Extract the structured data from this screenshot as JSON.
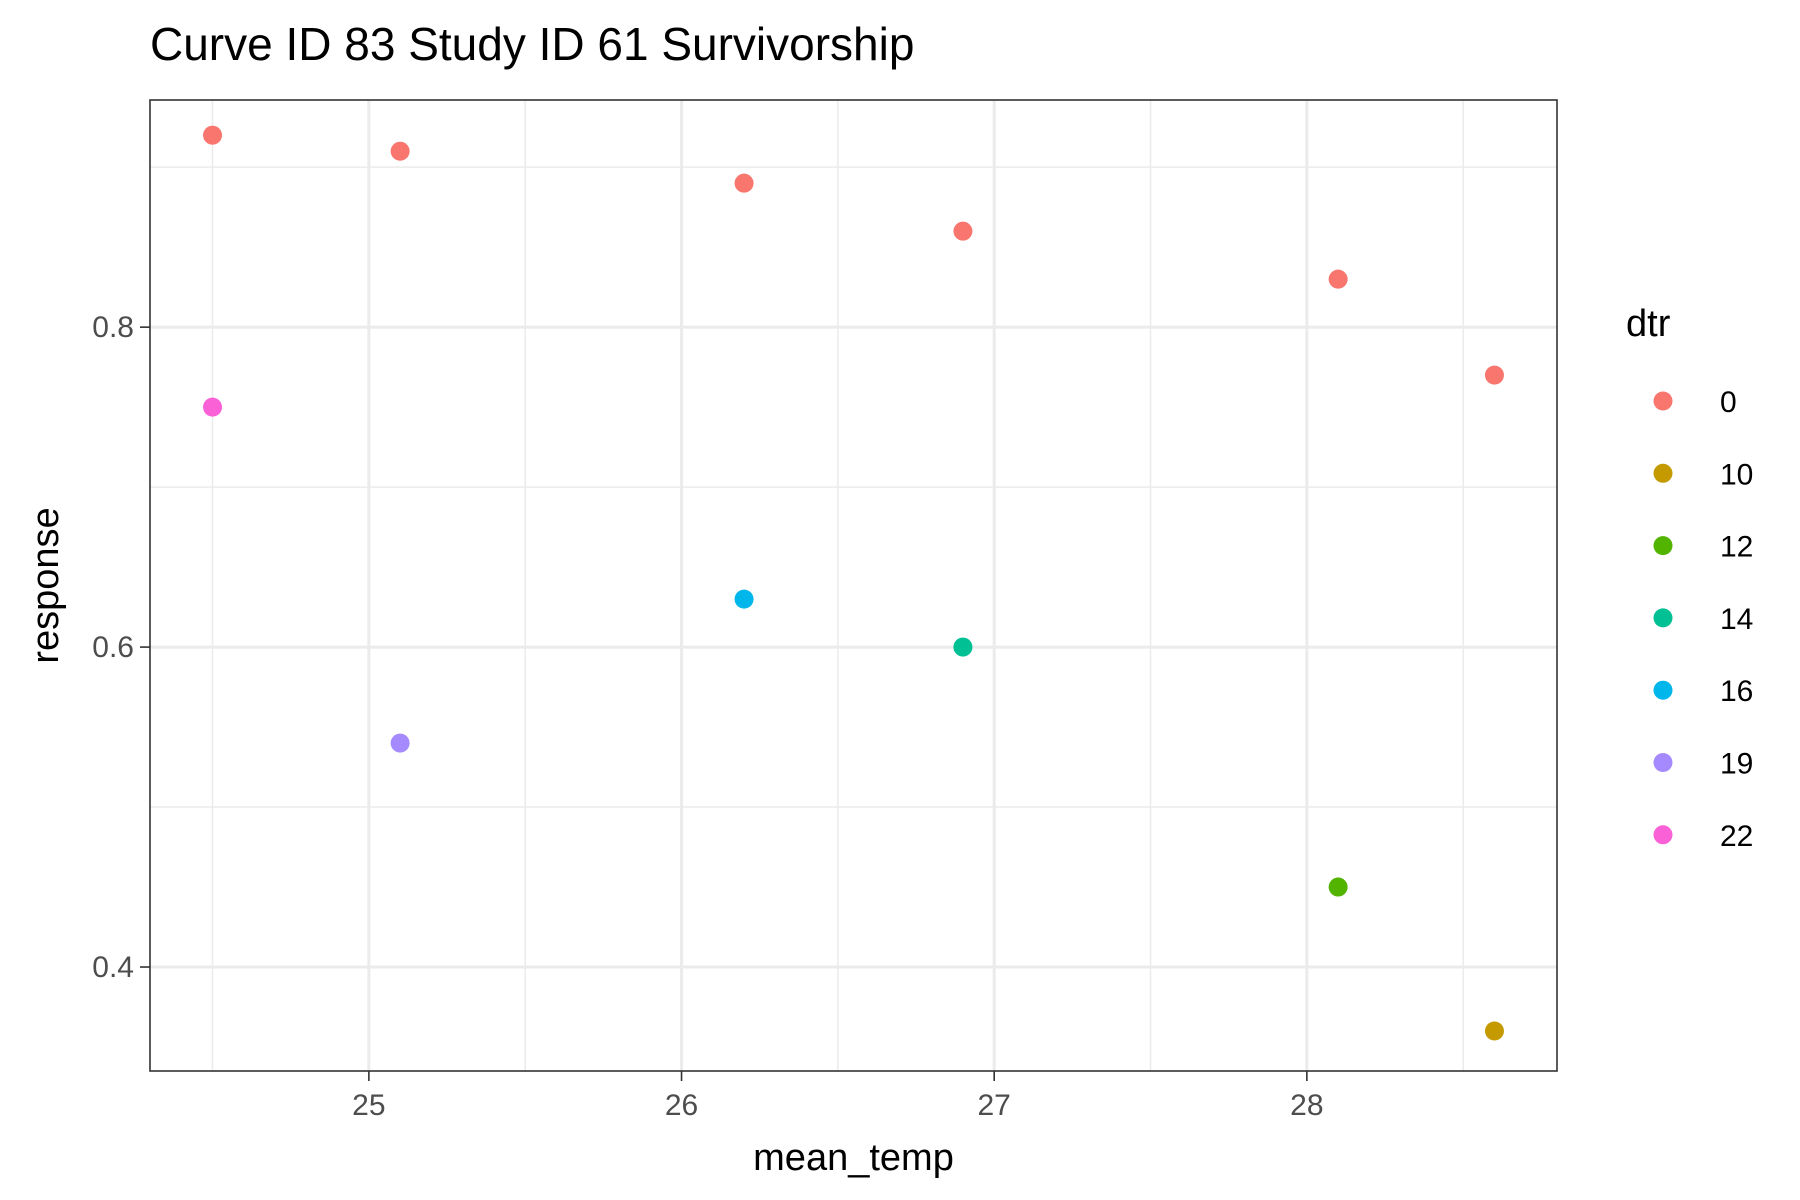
{
  "chart_data": {
    "type": "scatter",
    "title": "Curve ID 83 Study ID 61 Survivorship",
    "xlabel": "mean_temp",
    "ylabel": "response",
    "xlim": [
      24.3,
      28.8
    ],
    "ylim": [
      0.335,
      0.942
    ],
    "x_ticks": [
      25,
      26,
      27,
      28
    ],
    "x_tick_labels": [
      "25",
      "26",
      "27",
      "28"
    ],
    "x_minor_ticks": [
      24.5,
      25.5,
      26.5,
      27.5,
      28.5
    ],
    "y_ticks": [
      0.4,
      0.6,
      0.8
    ],
    "y_tick_labels": [
      "0.4",
      "0.6",
      "0.8"
    ],
    "y_minor_ticks": [
      0.5,
      0.7,
      0.9
    ],
    "grid": true,
    "legend": {
      "title": "dtr",
      "placement": "right",
      "entries": [
        {
          "label": "0",
          "color": "#F8766D"
        },
        {
          "label": "10",
          "color": "#C49A00"
        },
        {
          "label": "12",
          "color": "#53B400"
        },
        {
          "label": "14",
          "color": "#00C094"
        },
        {
          "label": "16",
          "color": "#00B6EB"
        },
        {
          "label": "19",
          "color": "#A58AFF"
        },
        {
          "label": "22",
          "color": "#FB61D7"
        }
      ]
    },
    "points": [
      {
        "x": 24.5,
        "y": 0.92,
        "dtr": "0"
      },
      {
        "x": 25.1,
        "y": 0.91,
        "dtr": "0"
      },
      {
        "x": 26.2,
        "y": 0.89,
        "dtr": "0"
      },
      {
        "x": 26.9,
        "y": 0.86,
        "dtr": "0"
      },
      {
        "x": 28.1,
        "y": 0.83,
        "dtr": "0"
      },
      {
        "x": 28.6,
        "y": 0.77,
        "dtr": "0"
      },
      {
        "x": 24.5,
        "y": 0.75,
        "dtr": "22"
      },
      {
        "x": 26.2,
        "y": 0.63,
        "dtr": "16"
      },
      {
        "x": 26.9,
        "y": 0.6,
        "dtr": "14"
      },
      {
        "x": 25.1,
        "y": 0.54,
        "dtr": "19"
      },
      {
        "x": 28.1,
        "y": 0.45,
        "dtr": "12"
      },
      {
        "x": 28.6,
        "y": 0.36,
        "dtr": "10"
      }
    ]
  }
}
